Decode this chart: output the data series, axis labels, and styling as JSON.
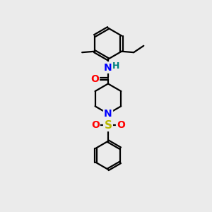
{
  "bg_color": "#ebebeb",
  "atom_colors": {
    "C": "#000000",
    "N": "#0000ff",
    "O": "#ff0000",
    "S": "#b8b800",
    "H": "#008080"
  },
  "line_color": "#000000",
  "line_width": 1.6,
  "figsize": [
    3.0,
    3.0
  ],
  "dpi": 100
}
